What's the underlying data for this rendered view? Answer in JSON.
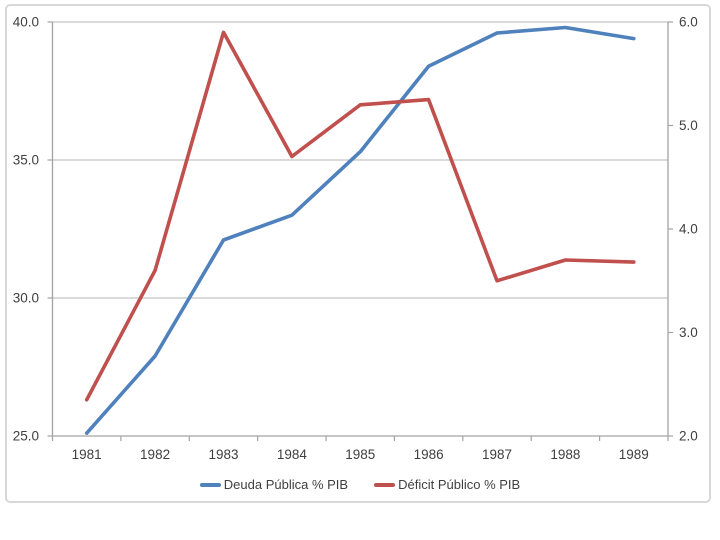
{
  "chart_data": {
    "type": "line",
    "categories": [
      "1981",
      "1982",
      "1983",
      "1984",
      "1985",
      "1986",
      "1987",
      "1988",
      "1989"
    ],
    "series": [
      {
        "name": "Deuda Pública % PIB",
        "axis": "left",
        "color": "#4F81BD",
        "values": [
          25.1,
          27.9,
          32.1,
          33.0,
          35.3,
          38.4,
          39.6,
          39.8,
          39.4
        ]
      },
      {
        "name": "Déficit Público % PIB",
        "axis": "right",
        "color": "#C0504D",
        "values": [
          2.35,
          3.6,
          5.9,
          4.7,
          5.2,
          5.25,
          3.5,
          3.7,
          3.68
        ]
      }
    ],
    "left_axis": {
      "min": 25,
      "max": 40,
      "tick_values": [
        25,
        30,
        35,
        40
      ],
      "tick_labels": [
        "25.0",
        "30.0",
        "35.0",
        "40.0"
      ]
    },
    "right_axis": {
      "min": 2,
      "max": 6,
      "tick_values": [
        2,
        3,
        4,
        5,
        6
      ],
      "tick_labels": [
        "2.0",
        "3.0",
        "4.0",
        "5.0",
        "6.0"
      ]
    },
    "grid": true,
    "legend_position": "bottom"
  },
  "colors": {
    "gridline": "#c3c3c3",
    "axis_line": "#a3a3a3",
    "tick_text": "#3f3f3f",
    "frame_border": "#d8d8d8",
    "background": "#ffffff"
  }
}
